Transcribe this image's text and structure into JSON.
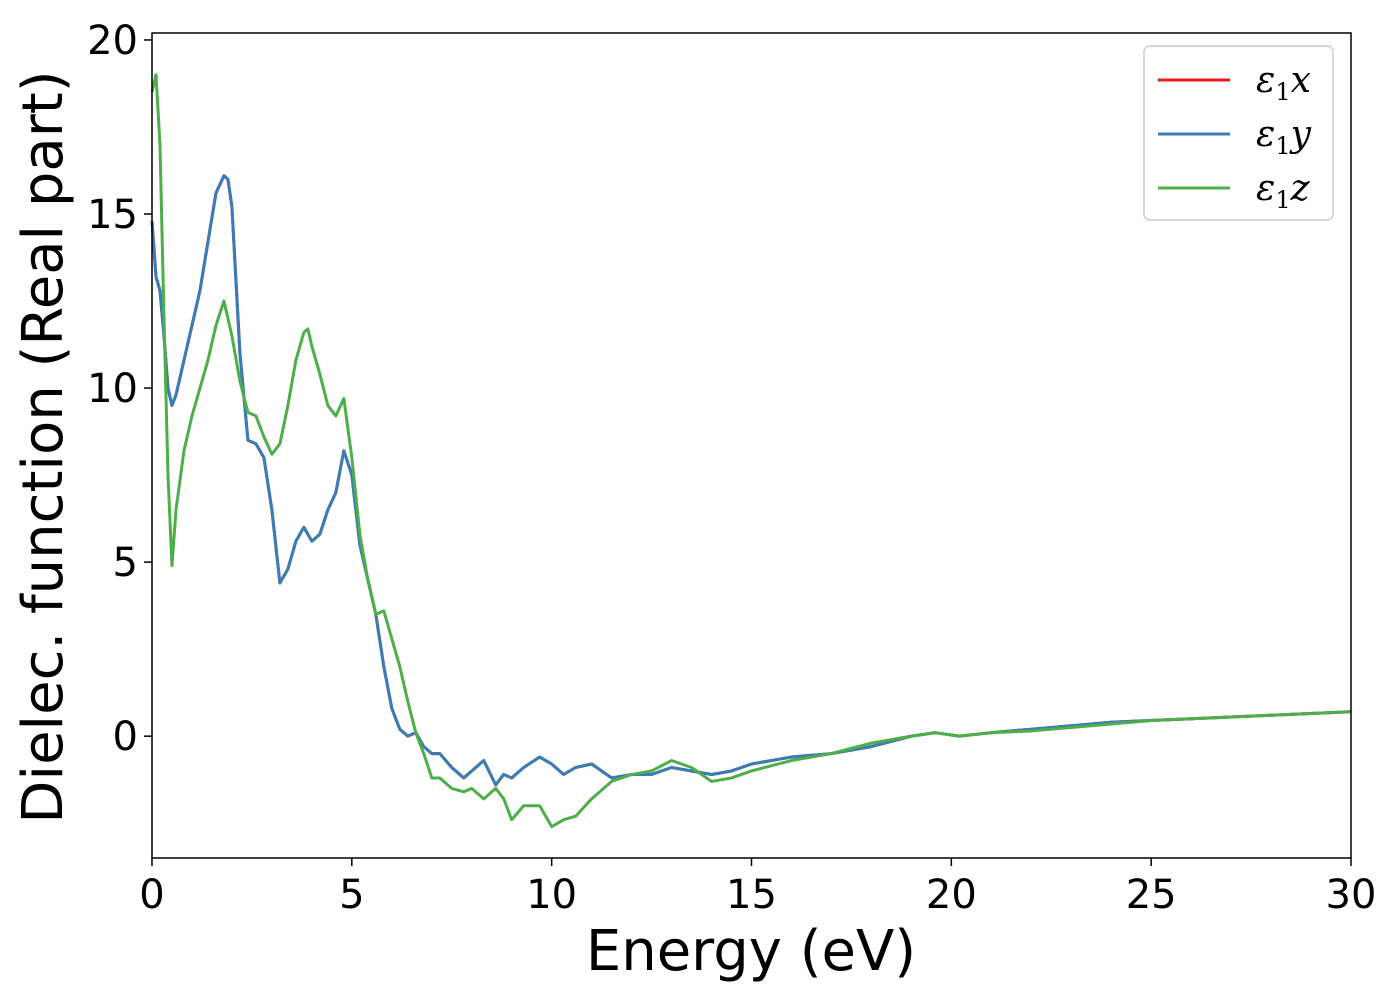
{
  "chart_data": {
    "type": "line",
    "title": "",
    "xlabel": "Energy (eV)",
    "ylabel": "Dielec. function (Real part)",
    "xlim": [
      0,
      30
    ],
    "ylim": [
      -3.5,
      20.2
    ],
    "xticks": [
      0,
      5,
      10,
      15,
      20,
      25,
      30
    ],
    "yticks": [
      0,
      5,
      10,
      15,
      20
    ],
    "xtick_labels": [
      "0",
      "5",
      "10",
      "15",
      "20",
      "25",
      "30"
    ],
    "ytick_labels": [
      "0",
      "5",
      "10",
      "15",
      "20"
    ],
    "grid": false,
    "legend_position": "top-right",
    "series": [
      {
        "name": "ε1x",
        "legend_main": "ε",
        "legend_sub": "1",
        "legend_var": "x",
        "color": "#e41a1c",
        "x": [
          0,
          0.1,
          0.2,
          0.3,
          0.4,
          0.5,
          0.6,
          0.8,
          1.0,
          1.2,
          1.4,
          1.6,
          1.8,
          1.9,
          2.0,
          2.2,
          2.4,
          2.6,
          2.8,
          3.0,
          3.2,
          3.4,
          3.6,
          3.8,
          4.0,
          4.2,
          4.4,
          4.6,
          4.8,
          5.0,
          5.2,
          5.4,
          5.6,
          5.8,
          6.0,
          6.2,
          6.4,
          6.6,
          6.8,
          7.0,
          7.2,
          7.5,
          7.8,
          8.0,
          8.3,
          8.6,
          8.8,
          9.0,
          9.3,
          9.7,
          10.0,
          10.3,
          10.6,
          11.0,
          11.5,
          12.0,
          12.5,
          13.0,
          13.5,
          14.0,
          14.5,
          15.0,
          16.0,
          17.0,
          18.0,
          19.0,
          19.6,
          20.2,
          21.0,
          22.0,
          23.0,
          24.0,
          25.0,
          26.0,
          27.0,
          28.0,
          29.0,
          30.0
        ],
        "y": [
          14.8,
          13.2,
          12.8,
          11.5,
          10.0,
          9.5,
          9.8,
          10.8,
          11.8,
          12.8,
          14.2,
          15.6,
          16.1,
          16.0,
          15.2,
          11.0,
          8.5,
          8.4,
          8.0,
          6.5,
          4.4,
          4.8,
          5.6,
          6.0,
          5.6,
          5.8,
          6.5,
          7.0,
          8.2,
          7.5,
          5.5,
          4.5,
          3.5,
          2.0,
          0.8,
          0.2,
          0.0,
          0.1,
          -0.3,
          -0.5,
          -0.5,
          -0.9,
          -1.2,
          -1.0,
          -0.7,
          -1.4,
          -1.1,
          -1.2,
          -0.9,
          -0.6,
          -0.8,
          -1.1,
          -0.9,
          -0.8,
          -1.2,
          -1.1,
          -1.1,
          -0.9,
          -1.0,
          -1.1,
          -1.0,
          -0.8,
          -0.6,
          -0.5,
          -0.3,
          0.0,
          0.1,
          0.0,
          0.1,
          0.2,
          0.3,
          0.4,
          0.45,
          0.5,
          0.55,
          0.6,
          0.65,
          0.7
        ]
      },
      {
        "name": "ε1y",
        "legend_main": "ε",
        "legend_sub": "1",
        "legend_var": "y",
        "color": "#377eb8",
        "x": [
          0,
          0.1,
          0.2,
          0.3,
          0.4,
          0.5,
          0.6,
          0.8,
          1.0,
          1.2,
          1.4,
          1.6,
          1.8,
          1.9,
          2.0,
          2.2,
          2.4,
          2.6,
          2.8,
          3.0,
          3.2,
          3.4,
          3.6,
          3.8,
          4.0,
          4.2,
          4.4,
          4.6,
          4.8,
          5.0,
          5.2,
          5.4,
          5.6,
          5.8,
          6.0,
          6.2,
          6.4,
          6.6,
          6.8,
          7.0,
          7.2,
          7.5,
          7.8,
          8.0,
          8.3,
          8.6,
          8.8,
          9.0,
          9.3,
          9.7,
          10.0,
          10.3,
          10.6,
          11.0,
          11.5,
          12.0,
          12.5,
          13.0,
          13.5,
          14.0,
          14.5,
          15.0,
          16.0,
          17.0,
          18.0,
          19.0,
          19.6,
          20.2,
          21.0,
          22.0,
          23.0,
          24.0,
          25.0,
          26.0,
          27.0,
          28.0,
          29.0,
          30.0
        ],
        "y": [
          14.8,
          13.2,
          12.8,
          11.5,
          10.0,
          9.5,
          9.8,
          10.8,
          11.8,
          12.8,
          14.2,
          15.6,
          16.1,
          16.0,
          15.2,
          11.0,
          8.5,
          8.4,
          8.0,
          6.5,
          4.4,
          4.8,
          5.6,
          6.0,
          5.6,
          5.8,
          6.5,
          7.0,
          8.2,
          7.5,
          5.5,
          4.5,
          3.5,
          2.0,
          0.8,
          0.2,
          0.0,
          0.1,
          -0.3,
          -0.5,
          -0.5,
          -0.9,
          -1.2,
          -1.0,
          -0.7,
          -1.4,
          -1.1,
          -1.2,
          -0.9,
          -0.6,
          -0.8,
          -1.1,
          -0.9,
          -0.8,
          -1.2,
          -1.1,
          -1.1,
          -0.9,
          -1.0,
          -1.1,
          -1.0,
          -0.8,
          -0.6,
          -0.5,
          -0.3,
          0.0,
          0.1,
          0.0,
          0.1,
          0.2,
          0.3,
          0.4,
          0.45,
          0.5,
          0.55,
          0.6,
          0.65,
          0.7
        ]
      },
      {
        "name": "ε1z",
        "legend_main": "ε",
        "legend_sub": "1",
        "legend_var": "z",
        "color": "#4daf4a",
        "x": [
          0,
          0.1,
          0.2,
          0.3,
          0.4,
          0.5,
          0.6,
          0.8,
          1.0,
          1.2,
          1.4,
          1.6,
          1.8,
          2.0,
          2.2,
          2.4,
          2.6,
          2.8,
          3.0,
          3.2,
          3.4,
          3.6,
          3.8,
          3.9,
          4.0,
          4.2,
          4.4,
          4.6,
          4.8,
          5.0,
          5.2,
          5.4,
          5.6,
          5.8,
          6.0,
          6.2,
          6.4,
          6.6,
          6.8,
          7.0,
          7.2,
          7.5,
          7.8,
          8.0,
          8.3,
          8.6,
          8.8,
          9.0,
          9.3,
          9.7,
          10.0,
          10.3,
          10.6,
          11.0,
          11.5,
          12.0,
          12.5,
          13.0,
          13.5,
          14.0,
          14.5,
          15.0,
          16.0,
          17.0,
          18.0,
          19.0,
          19.6,
          20.2,
          21.0,
          22.0,
          23.0,
          24.0,
          25.0,
          26.0,
          27.0,
          28.0,
          29.0,
          30.0
        ],
        "y": [
          18.5,
          19.0,
          17.0,
          12.0,
          7.5,
          4.9,
          6.5,
          8.2,
          9.2,
          10.0,
          10.8,
          11.8,
          12.5,
          11.5,
          10.2,
          9.3,
          9.2,
          8.6,
          8.1,
          8.4,
          9.5,
          10.8,
          11.6,
          11.7,
          11.2,
          10.4,
          9.5,
          9.2,
          9.7,
          8.0,
          5.8,
          4.5,
          3.5,
          3.6,
          2.8,
          2.0,
          1.0,
          0.1,
          -0.5,
          -1.2,
          -1.2,
          -1.5,
          -1.6,
          -1.5,
          -1.8,
          -1.5,
          -1.8,
          -2.4,
          -2.0,
          -2.0,
          -2.6,
          -2.4,
          -2.3,
          -1.8,
          -1.3,
          -1.1,
          -1.0,
          -0.7,
          -0.9,
          -1.3,
          -1.2,
          -1.0,
          -0.7,
          -0.5,
          -0.2,
          0.0,
          0.1,
          0.0,
          0.1,
          0.15,
          0.25,
          0.35,
          0.45,
          0.5,
          0.55,
          0.6,
          0.65,
          0.7
        ]
      }
    ]
  }
}
